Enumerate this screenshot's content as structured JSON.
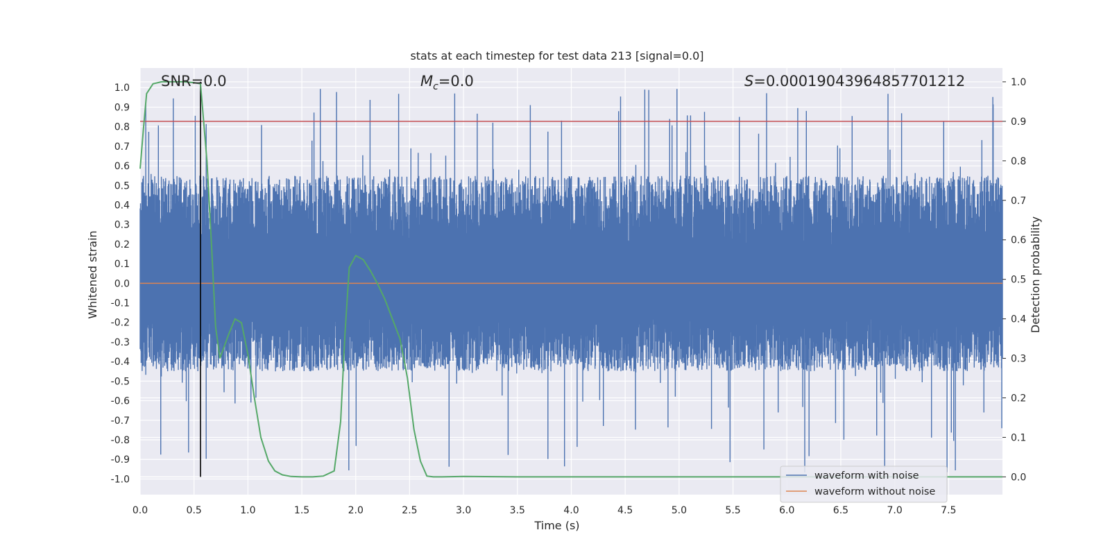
{
  "chart_data": {
    "type": "line",
    "title": "stats at each timestep for test data 213 [signal=0.0]",
    "xlabel": "Time (s)",
    "ylabel_left": "Whitened strain",
    "ylabel_right": "Detection probability",
    "xlim": [
      0.0,
      8.0
    ],
    "ylim_left": [
      -1.08,
      1.1
    ],
    "ylim_right": [
      -0.045,
      1.035
    ],
    "x_ticks": [
      "0.0",
      "0.5",
      "1.0",
      "1.5",
      "2.0",
      "2.5",
      "3.0",
      "3.5",
      "4.0",
      "4.5",
      "5.0",
      "5.5",
      "6.0",
      "6.5",
      "7.0",
      "7.5"
    ],
    "y_left_ticks": [
      "1.0",
      "0.9",
      "0.8",
      "0.7",
      "0.6",
      "0.5",
      "0.4",
      "0.3",
      "0.2",
      "0.1",
      "0.0",
      "-0.1",
      "-0.2",
      "-0.3",
      "-0.4",
      "-0.5",
      "-0.6",
      "-0.7",
      "-0.8",
      "-0.9",
      "-1.0"
    ],
    "y_right_ticks": [
      "1.0",
      "0.9",
      "0.8",
      "0.7",
      "0.6",
      "0.5",
      "0.4",
      "0.3",
      "0.2",
      "0.1",
      "0.0"
    ],
    "grid": true,
    "annotations": {
      "snr": {
        "label": "SNR",
        "value": "=0.0"
      },
      "mc": {
        "label": "M",
        "sub": "c",
        "value": "=0.0"
      },
      "s": {
        "label": "S",
        "value": "=0.00019043964857701212"
      }
    },
    "threshold_probability": 0.9,
    "marker_time": 0.56,
    "legend": {
      "position": "lower-right",
      "entries": [
        {
          "label": "waveform with noise",
          "color": "#4c72b0"
        },
        {
          "label": "waveform without noise",
          "color": "#dd8452"
        }
      ]
    },
    "series": [
      {
        "name": "waveform with noise",
        "axis": "left",
        "color": "#4c72b0",
        "kind": "noise",
        "typical_range": [
          -0.45,
          0.55
        ],
        "peak_max": 1.0,
        "peak_min": -0.97
      },
      {
        "name": "waveform without noise",
        "axis": "left",
        "color": "#dd8452",
        "constant": 0.0
      },
      {
        "name": "detection probability",
        "axis": "right",
        "color": "#55a868",
        "x": [
          0.0,
          0.03,
          0.06,
          0.12,
          0.2,
          0.3,
          0.4,
          0.5,
          0.56,
          0.58,
          0.62,
          0.66,
          0.7,
          0.74,
          0.78,
          0.82,
          0.88,
          0.94,
          1.0,
          1.06,
          1.12,
          1.19,
          1.25,
          1.32,
          1.4,
          1.5,
          1.6,
          1.7,
          1.8,
          1.86,
          1.9,
          1.94,
          2.0,
          2.07,
          2.14,
          2.2,
          2.27,
          2.34,
          2.41,
          2.48,
          2.54,
          2.6,
          2.66,
          2.72,
          2.8,
          3.0,
          3.5,
          4.0,
          5.0,
          6.0,
          7.0,
          8.0
        ],
        "values": [
          0.78,
          0.88,
          0.97,
          0.995,
          1.0,
          1.0,
          1.0,
          0.998,
          0.995,
          0.93,
          0.8,
          0.6,
          0.38,
          0.3,
          0.33,
          0.36,
          0.4,
          0.39,
          0.31,
          0.2,
          0.1,
          0.04,
          0.015,
          0.005,
          0.001,
          0.0,
          0.0,
          0.002,
          0.015,
          0.14,
          0.36,
          0.53,
          0.56,
          0.55,
          0.52,
          0.49,
          0.45,
          0.4,
          0.35,
          0.25,
          0.12,
          0.04,
          0.002,
          0.0,
          0.0,
          0.001,
          0.0,
          0.0,
          0.0,
          0.0,
          0.0,
          0.0
        ]
      }
    ]
  }
}
